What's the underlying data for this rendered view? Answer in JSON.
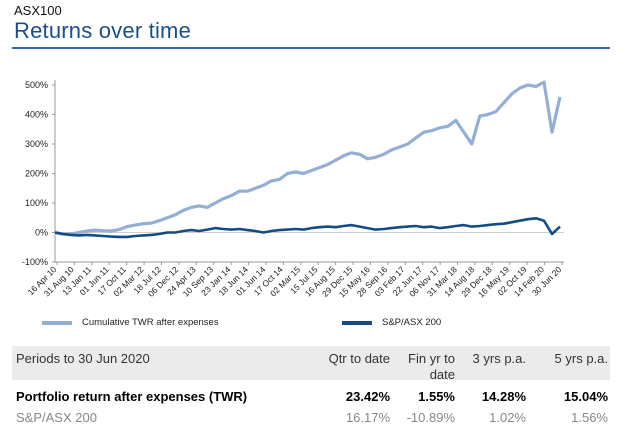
{
  "header": {
    "kicker": "ASX100",
    "title": "Returns over time"
  },
  "colors": {
    "title": "#1b4f8a",
    "rule": "#2d6cae",
    "twr": "#94afd6",
    "index": "#134d84",
    "axis": "#999999"
  },
  "chart_data": {
    "type": "line",
    "title": "",
    "ylim": [
      -100,
      500
    ],
    "yticks": [
      -100,
      0,
      100,
      200,
      300,
      400,
      500
    ],
    "ytick_labels": [
      "-100%",
      "0%",
      "100%",
      "200%",
      "300%",
      "400%",
      "500%"
    ],
    "x_tick_labels": [
      "16 Apr 10",
      "31 Aug 10",
      "13 Jan 11",
      "01 Jun 11",
      "17 Oct 11",
      "02 Mar 12",
      "18 Jul 12",
      "06 Dec 12",
      "24 Apr 13",
      "10 Sep 13",
      "23 Jan 14",
      "18 Jun 14",
      "01 Jun 14",
      "17 Oct 14",
      "02 Mar 15",
      "15 Jul 15",
      "16 Aug 15",
      "29 Dec 15",
      "15 May 16",
      "28 Sep 16",
      "03 Feb 17",
      "22 Jun 17",
      "06 Nov 17",
      "31 Mar 18",
      "14 Aug 18",
      "29 Dec 18",
      "16 May 19",
      "02 Oct 19",
      "14 Feb 20",
      "30 Jun 20"
    ],
    "legend": [
      "Cumulative TWR after expenses",
      "S&P/ASX 200"
    ],
    "series": [
      {
        "name": "Cumulative TWR after expenses",
        "x": [
          0,
          1,
          2,
          3,
          4,
          5,
          6,
          7,
          8,
          9,
          10,
          11,
          12,
          13,
          14,
          15,
          16,
          17,
          18,
          19,
          20,
          21,
          22,
          23,
          24,
          25,
          26,
          27,
          28,
          29,
          30,
          31,
          32,
          33,
          34,
          35,
          36,
          37,
          38,
          39,
          40,
          41,
          42,
          43,
          44,
          45,
          46,
          47,
          48,
          49,
          50,
          51,
          52,
          53,
          54,
          55,
          56,
          57,
          58,
          59,
          60,
          61,
          62,
          63
        ],
        "values": [
          0,
          -5,
          -5,
          0,
          5,
          8,
          6,
          5,
          10,
          20,
          25,
          30,
          32,
          40,
          50,
          60,
          75,
          85,
          90,
          85,
          100,
          115,
          125,
          140,
          140,
          150,
          160,
          175,
          180,
          200,
          205,
          200,
          210,
          220,
          230,
          245,
          260,
          270,
          265,
          250,
          255,
          265,
          280,
          290,
          300,
          320,
          340,
          345,
          355,
          360,
          380,
          340,
          300,
          395,
          400,
          410,
          440,
          470,
          490,
          500,
          495,
          510,
          340,
          460
        ]
      },
      {
        "name": "S&P/ASX 200",
        "x": [
          0,
          1,
          2,
          3,
          4,
          5,
          6,
          7,
          8,
          9,
          10,
          11,
          12,
          13,
          14,
          15,
          16,
          17,
          18,
          19,
          20,
          21,
          22,
          23,
          24,
          25,
          26,
          27,
          28,
          29,
          30,
          31,
          32,
          33,
          34,
          35,
          36,
          37,
          38,
          39,
          40,
          41,
          42,
          43,
          44,
          45,
          46,
          47,
          48,
          49,
          50,
          51,
          52,
          53,
          54,
          55,
          56,
          57,
          58,
          59,
          60,
          61,
          62,
          63
        ],
        "values": [
          0,
          -5,
          -8,
          -10,
          -8,
          -10,
          -12,
          -14,
          -15,
          -15,
          -12,
          -10,
          -8,
          -5,
          0,
          0,
          5,
          8,
          5,
          10,
          15,
          12,
          10,
          12,
          8,
          5,
          0,
          5,
          8,
          10,
          12,
          10,
          15,
          18,
          20,
          18,
          22,
          25,
          20,
          15,
          10,
          12,
          15,
          18,
          20,
          22,
          18,
          20,
          15,
          18,
          22,
          25,
          20,
          22,
          25,
          28,
          30,
          35,
          40,
          45,
          48,
          40,
          -5,
          20
        ]
      }
    ]
  },
  "table": {
    "headers": [
      "Periods to 30 Jun 2020",
      "Qtr to date",
      "Fin yr to date",
      "3 yrs p.a.",
      "5 yrs p.a."
    ],
    "rows": [
      {
        "label": "Portfolio return after expenses (TWR)",
        "values": [
          "23.42%",
          "1.55%",
          "14.28%",
          "15.04%"
        ]
      },
      {
        "label": "S&P/ASX 200",
        "values": [
          "16.17%",
          "-10.89%",
          "1.02%",
          "1.56%"
        ]
      }
    ]
  }
}
